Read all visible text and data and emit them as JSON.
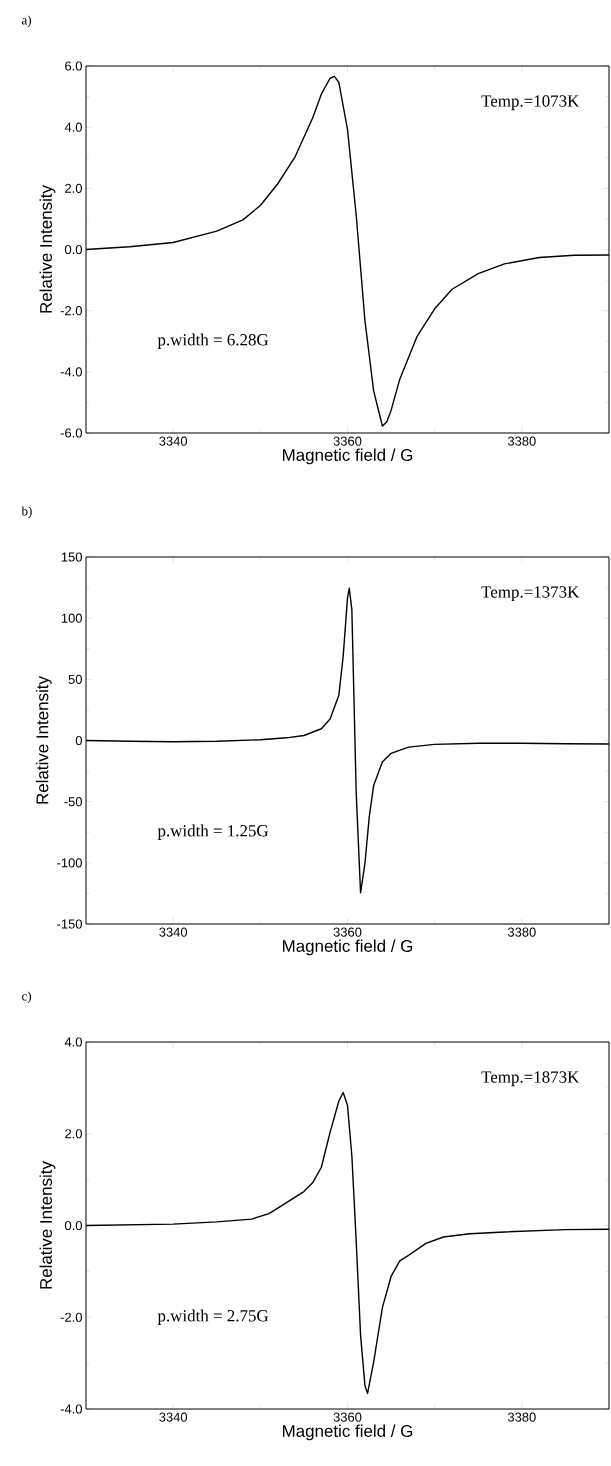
{
  "chart_data": [
    {
      "type": "line",
      "title": "a)",
      "xlabel": "Magnetic field / G",
      "ylabel": "Relative Intensity",
      "color": "#000000",
      "x": [
        3330,
        3335,
        3340,
        3345,
        3348,
        3350,
        3352,
        3354,
        3356,
        3357,
        3358,
        3358.5,
        3359,
        3360,
        3361,
        3362,
        3363,
        3364,
        3364.5,
        3365,
        3366,
        3368,
        3370,
        3372,
        3375,
        3378,
        3382,
        3386,
        3390
      ],
      "values": [
        0.0,
        0.09,
        0.23,
        0.6,
        0.97,
        1.44,
        2.15,
        3.04,
        4.3,
        5.08,
        5.6,
        5.66,
        5.47,
        3.93,
        1.12,
        -2.32,
        -4.62,
        -5.77,
        -5.64,
        -5.26,
        -4.24,
        -2.83,
        -1.94,
        -1.3,
        -0.79,
        -0.47,
        -0.26,
        -0.19,
        -0.18
      ],
      "xlim": [
        3330,
        3390
      ],
      "ylim": [
        -6,
        6
      ],
      "xticks": [
        3340,
        3360,
        3380
      ],
      "yticks": [
        {
          "value": -6,
          "label": "-6.0"
        },
        {
          "value": -4,
          "label": "-4.0"
        },
        {
          "value": -2,
          "label": "-2.0"
        },
        {
          "value": 0,
          "label": "0.0"
        },
        {
          "value": 2,
          "label": "2.0"
        },
        {
          "value": 4,
          "label": "4.0"
        },
        {
          "value": 6,
          "label": "6.0"
        }
      ],
      "annotations": [
        "Temp.=1073K",
        "p.width = 6.28G"
      ]
    },
    {
      "type": "line",
      "title": "b)",
      "xlabel": "Magnetic field / G",
      "ylabel": "Relative Intensity",
      "color": "#000000",
      "x": [
        3330,
        3335,
        3340,
        3345,
        3350,
        3353,
        3355,
        3357,
        3358,
        3359,
        3359.5,
        3360,
        3360.2,
        3360.5,
        3361,
        3361.5,
        3362,
        3362.5,
        3363,
        3364,
        3365,
        3367,
        3370,
        3375,
        3380,
        3385,
        3390
      ],
      "values": [
        0,
        -0.6,
        -1,
        -0.6,
        0.6,
        2.2,
        4.1,
        9.6,
        17.6,
        36.7,
        68.6,
        116.5,
        124.5,
        107,
        -43,
        -124.5,
        -100.5,
        -62,
        -36.7,
        -17.6,
        -10.5,
        -5.4,
        -3.2,
        -2.2,
        -2.2,
        -2.6,
        -2.9
      ],
      "xlim": [
        3330,
        3390
      ],
      "ylim": [
        -150,
        150
      ],
      "xticks": [
        3340,
        3360,
        3380
      ],
      "yticks": [
        -150,
        -100,
        -50,
        0,
        50,
        100,
        150
      ],
      "annotations": [
        "Temp.=1373K",
        "p.width = 1.25G"
      ]
    },
    {
      "type": "line",
      "title": "c)",
      "xlabel": "Magnetic field / G",
      "ylabel": "Relative Intensity",
      "color": "#000000",
      "x": [
        3330,
        3340,
        3345,
        3349,
        3351,
        3353,
        3355,
        3356,
        3357,
        3358,
        3359,
        3359.5,
        3360,
        3360.5,
        3361,
        3361.5,
        3362,
        3362.3,
        3363,
        3364,
        3365,
        3366,
        3367,
        3368,
        3369,
        3371,
        3374,
        3378,
        3385,
        3390
      ],
      "values": [
        0,
        0.03,
        0.08,
        0.14,
        0.26,
        0.5,
        0.74,
        0.93,
        1.27,
        2.03,
        2.71,
        2.9,
        2.62,
        1.52,
        -0.35,
        -2.39,
        -3.49,
        -3.66,
        -2.98,
        -1.79,
        -1.11,
        -0.77,
        -0.65,
        -0.52,
        -0.39,
        -0.25,
        -0.18,
        -0.14,
        -0.09,
        -0.08
      ],
      "xlim": [
        3330,
        3390
      ],
      "ylim": [
        -4,
        4
      ],
      "xticks": [
        3340,
        3360,
        3380
      ],
      "yticks": [
        {
          "value": -4,
          "label": "-4.0"
        },
        {
          "value": -2,
          "label": "-2.0"
        },
        {
          "value": 0,
          "label": "0.0"
        },
        {
          "value": 2,
          "label": "2.0"
        },
        {
          "value": 4,
          "label": "4.0"
        }
      ],
      "annotations": [
        "Temp.=1873K",
        "p.width = 2.75G"
      ]
    }
  ]
}
